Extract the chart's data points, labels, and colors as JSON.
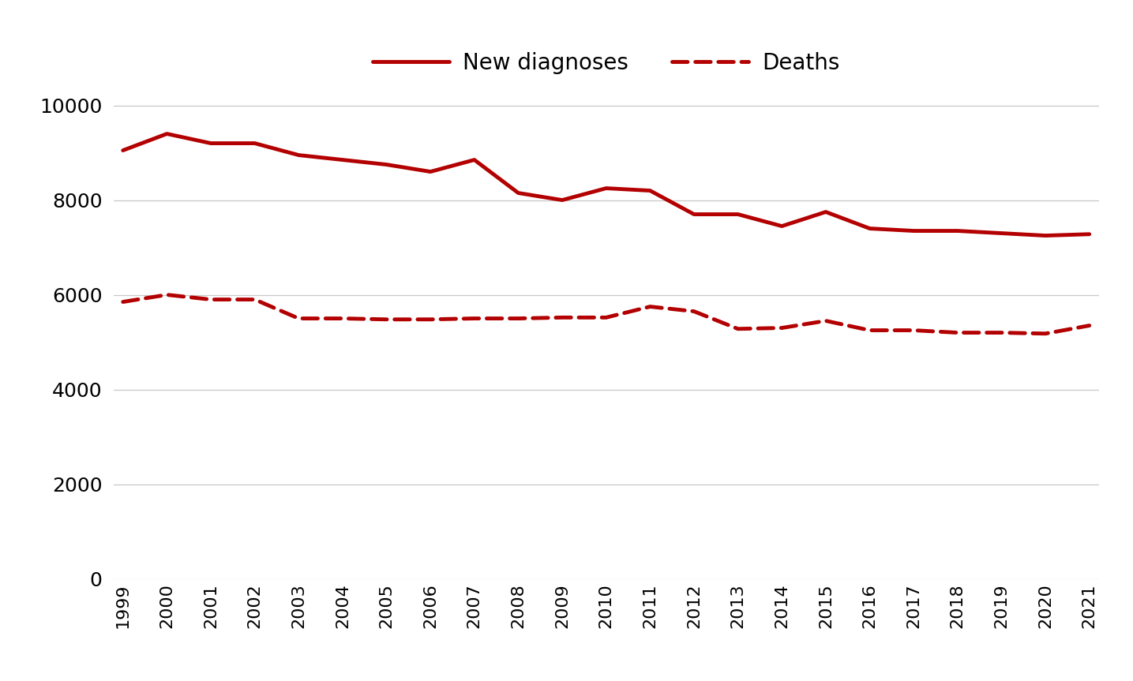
{
  "years": [
    1999,
    2000,
    2001,
    2002,
    2003,
    2004,
    2005,
    2006,
    2007,
    2008,
    2009,
    2010,
    2011,
    2012,
    2013,
    2014,
    2015,
    2016,
    2017,
    2018,
    2019,
    2020,
    2021
  ],
  "new_diagnoses": [
    9050,
    9400,
    9200,
    9200,
    8950,
    8850,
    8750,
    8600,
    8850,
    8150,
    8000,
    8250,
    8200,
    7700,
    7700,
    7450,
    7750,
    7400,
    7350,
    7350,
    7300,
    7250,
    7280
  ],
  "deaths": [
    5850,
    6000,
    5900,
    5900,
    5500,
    5500,
    5480,
    5480,
    5500,
    5500,
    5520,
    5520,
    5750,
    5650,
    5280,
    5300,
    5450,
    5250,
    5250,
    5200,
    5200,
    5180,
    5350
  ],
  "line_color": "#b30000",
  "background_color": "#ffffff",
  "ylim": [
    0,
    10500
  ],
  "yticks": [
    0,
    2000,
    4000,
    6000,
    8000,
    10000
  ],
  "legend_labels": [
    "New diagnoses",
    "Deaths"
  ],
  "ytick_fontsize": 18,
  "xtick_fontsize": 16,
  "legend_fontsize": 20,
  "line_width": 3.5,
  "grid_color": "#c8c8c8"
}
